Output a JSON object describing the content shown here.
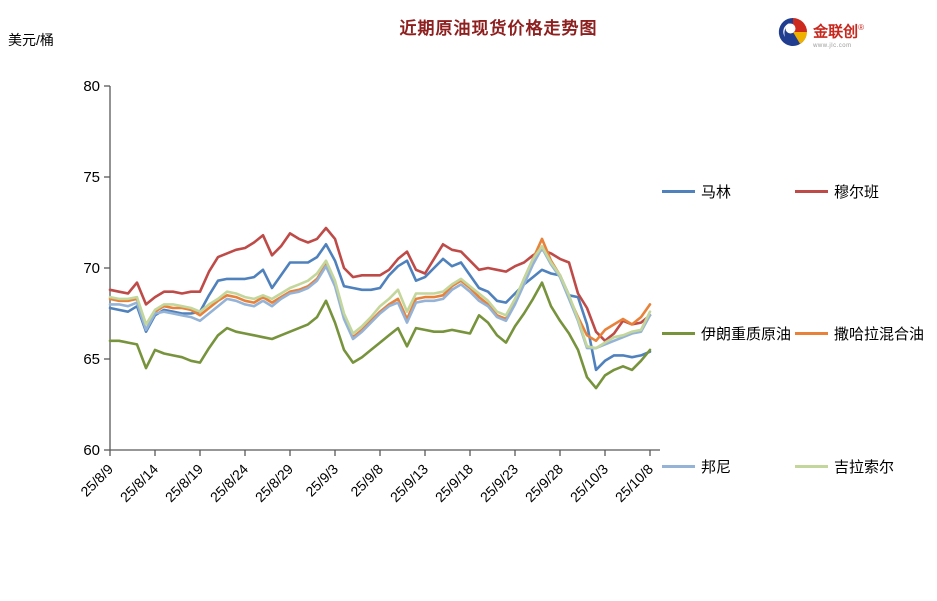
{
  "title": "近期原油现货价格走势图",
  "y_axis_unit": "美元/桶",
  "logo": {
    "name": "金联创",
    "reg": "®",
    "site": "www.jlc.com"
  },
  "legend": [
    {
      "label": "马林",
      "color": "#4F81BD"
    },
    {
      "label": "穆尔班",
      "color": "#BE4B48"
    },
    {
      "label": "伊朗重质原油",
      "color": "#77933C"
    },
    {
      "label": "撒哈拉混合油",
      "color": "#E8823A"
    },
    {
      "label": "邦尼",
      "color": "#95B3D7"
    },
    {
      "label": "吉拉索尔",
      "color": "#C3D69B"
    }
  ],
  "chart_data": {
    "type": "line",
    "title": "近期原油现货价格走势图",
    "ylabel": "美元/桶",
    "ylim": [
      60,
      80
    ],
    "y_ticks": [
      60,
      65,
      70,
      75,
      80
    ],
    "grid": false,
    "legend_position": "right",
    "x_tick_labels": [
      "25/8/9",
      "25/8/14",
      "25/8/19",
      "25/8/24",
      "25/8/29",
      "25/9/3",
      "25/9/8",
      "25/9/13",
      "25/9/18",
      "25/9/23",
      "25/9/28",
      "25/10/3",
      "25/10/8"
    ],
    "x": [
      "25/8/9",
      "25/8/10",
      "25/8/11",
      "25/8/12",
      "25/8/13",
      "25/8/14",
      "25/8/15",
      "25/8/16",
      "25/8/17",
      "25/8/18",
      "25/8/19",
      "25/8/20",
      "25/8/21",
      "25/8/22",
      "25/8/23",
      "25/8/24",
      "25/8/25",
      "25/8/26",
      "25/8/27",
      "25/8/28",
      "25/8/29",
      "25/8/30",
      "25/8/31",
      "25/9/1",
      "25/9/2",
      "25/9/3",
      "25/9/4",
      "25/9/5",
      "25/9/6",
      "25/9/7",
      "25/9/8",
      "25/9/9",
      "25/9/10",
      "25/9/11",
      "25/9/12",
      "25/9/13",
      "25/9/14",
      "25/9/15",
      "25/9/16",
      "25/9/17",
      "25/9/18",
      "25/9/19",
      "25/9/20",
      "25/9/21",
      "25/9/22",
      "25/9/23",
      "25/9/24",
      "25/9/25",
      "25/9/26",
      "25/9/27",
      "25/9/28",
      "25/9/29",
      "25/9/30",
      "25/10/1",
      "25/10/2",
      "25/10/3",
      "25/10/4",
      "25/10/5",
      "25/10/6",
      "25/10/7",
      "25/10/8"
    ],
    "series": [
      {
        "name": "马林",
        "color": "#4F81BD",
        "values": [
          67.8,
          67.7,
          67.6,
          67.9,
          66.5,
          67.4,
          67.7,
          67.6,
          67.5,
          67.5,
          67.6,
          68.5,
          69.3,
          69.4,
          69.4,
          69.4,
          69.5,
          69.9,
          68.9,
          69.6,
          70.3,
          70.3,
          70.3,
          70.6,
          71.3,
          70.4,
          69.0,
          68.9,
          68.8,
          68.8,
          68.9,
          69.6,
          70.1,
          70.4,
          69.3,
          69.5,
          70.0,
          70.5,
          70.1,
          70.3,
          69.6,
          68.9,
          68.7,
          68.2,
          68.1,
          68.6,
          69.1,
          69.5,
          69.9,
          69.7,
          69.6,
          68.5,
          68.4,
          66.9,
          64.4,
          64.9,
          65.2,
          65.2,
          65.1,
          65.2,
          65.4
        ]
      },
      {
        "name": "穆尔班",
        "color": "#BE4B48",
        "values": [
          68.8,
          68.7,
          68.6,
          69.2,
          68.0,
          68.4,
          68.7,
          68.7,
          68.6,
          68.7,
          68.7,
          69.8,
          70.6,
          70.8,
          71.0,
          71.1,
          71.4,
          71.8,
          70.7,
          71.2,
          71.9,
          71.6,
          71.4,
          71.6,
          72.2,
          71.6,
          70.0,
          69.5,
          69.6,
          69.6,
          69.6,
          69.9,
          70.5,
          70.9,
          69.9,
          69.7,
          70.5,
          71.3,
          71.0,
          70.9,
          70.4,
          69.9,
          70.0,
          69.9,
          69.8,
          70.1,
          70.3,
          70.7,
          71.0,
          70.8,
          70.5,
          70.3,
          68.6,
          67.8,
          66.5,
          66.0,
          66.4,
          67.1,
          66.9,
          67.0,
          67.4
        ]
      },
      {
        "name": "伊朗重质原油",
        "color": "#77933C",
        "values": [
          66.0,
          66.0,
          65.9,
          65.8,
          64.5,
          65.5,
          65.3,
          65.2,
          65.1,
          64.9,
          64.8,
          65.6,
          66.3,
          66.7,
          66.5,
          66.4,
          66.3,
          66.2,
          66.1,
          66.3,
          66.5,
          66.7,
          66.9,
          67.3,
          68.2,
          67.0,
          65.5,
          64.8,
          65.1,
          65.5,
          65.9,
          66.3,
          66.7,
          65.7,
          66.7,
          66.6,
          66.5,
          66.5,
          66.6,
          66.5,
          66.4,
          67.4,
          67.0,
          66.3,
          65.9,
          66.8,
          67.5,
          68.3,
          69.2,
          67.9,
          67.1,
          66.4,
          65.5,
          64.0,
          63.4,
          64.1,
          64.4,
          64.6,
          64.4,
          64.9,
          65.5
        ]
      },
      {
        "name": "撒哈拉混合油",
        "color": "#E8823A",
        "values": [
          68.3,
          68.2,
          68.2,
          68.3,
          66.9,
          67.6,
          67.9,
          67.8,
          67.8,
          67.7,
          67.4,
          67.8,
          68.2,
          68.5,
          68.4,
          68.2,
          68.1,
          68.4,
          68.1,
          68.4,
          68.7,
          68.8,
          69.0,
          69.4,
          70.2,
          69.1,
          67.3,
          66.2,
          66.6,
          67.1,
          67.6,
          68.0,
          68.3,
          67.2,
          68.3,
          68.4,
          68.4,
          68.5,
          69.0,
          69.3,
          68.9,
          68.4,
          68.0,
          67.4,
          67.2,
          68.2,
          69.4,
          70.5,
          71.6,
          70.4,
          69.6,
          68.4,
          67.3,
          66.3,
          66.0,
          66.6,
          66.9,
          67.2,
          66.9,
          67.3,
          68.0
        ]
      },
      {
        "name": "邦尼",
        "color": "#95B3D7",
        "values": [
          68.0,
          68.0,
          67.9,
          68.1,
          66.6,
          67.5,
          67.6,
          67.5,
          67.4,
          67.3,
          67.1,
          67.5,
          67.9,
          68.3,
          68.2,
          68.0,
          67.9,
          68.2,
          67.9,
          68.3,
          68.6,
          68.7,
          68.9,
          69.3,
          70.1,
          69.0,
          67.2,
          66.1,
          66.5,
          67.0,
          67.5,
          67.9,
          68.1,
          67.0,
          68.1,
          68.2,
          68.2,
          68.3,
          68.8,
          69.1,
          68.7,
          68.2,
          67.9,
          67.3,
          67.1,
          68.0,
          69.1,
          70.2,
          71.1,
          70.2,
          69.5,
          68.3,
          67.1,
          65.6,
          65.6,
          65.8,
          66.0,
          66.2,
          66.4,
          66.5,
          67.4
        ]
      },
      {
        "name": "吉拉索尔",
        "color": "#C3D69B",
        "values": [
          68.4,
          68.3,
          68.3,
          68.4,
          66.9,
          67.7,
          68.0,
          68.0,
          67.9,
          67.8,
          67.6,
          68.0,
          68.3,
          68.7,
          68.6,
          68.4,
          68.3,
          68.5,
          68.3,
          68.6,
          68.9,
          69.1,
          69.3,
          69.7,
          70.4,
          69.3,
          67.5,
          66.4,
          66.8,
          67.3,
          67.9,
          68.3,
          68.8,
          67.6,
          68.6,
          68.6,
          68.6,
          68.7,
          69.1,
          69.4,
          69.0,
          68.6,
          68.2,
          67.6,
          67.4,
          68.3,
          69.4,
          70.5,
          71.2,
          70.3,
          69.6,
          68.5,
          67.2,
          65.7,
          65.6,
          65.9,
          66.2,
          66.3,
          66.5,
          66.6,
          67.6
        ]
      }
    ]
  }
}
